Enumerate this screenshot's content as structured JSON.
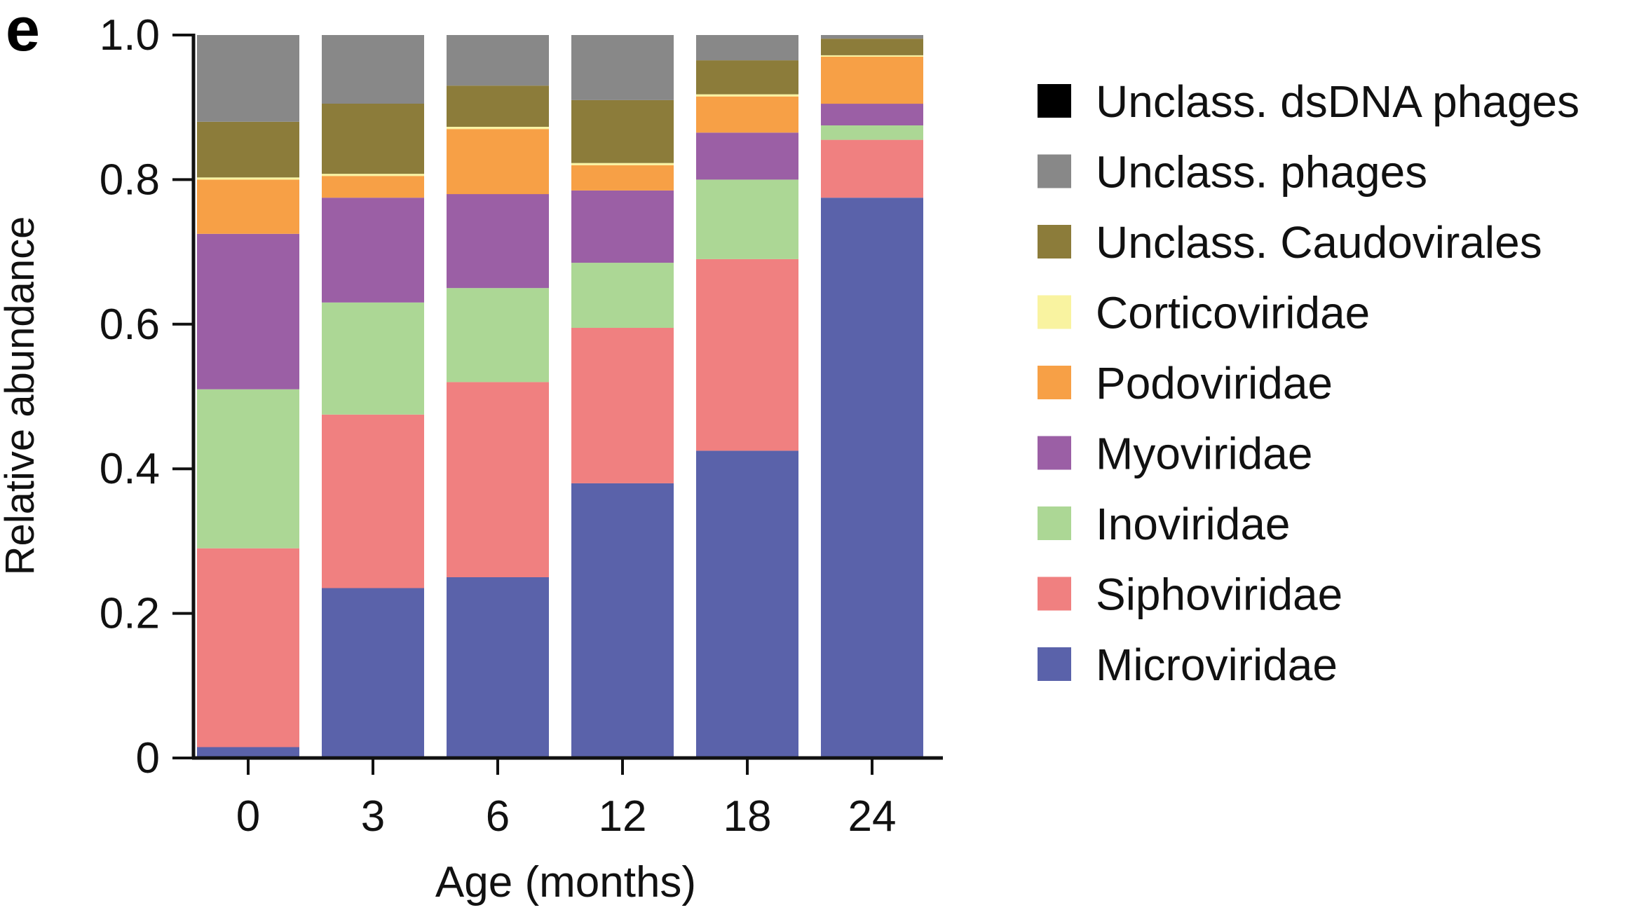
{
  "panel_label": "e",
  "chart_data": {
    "type": "bar",
    "stacked": true,
    "title": "",
    "xlabel": "Age (months)",
    "ylabel": "Relative abundance",
    "ylim": [
      0,
      1.0
    ],
    "yticks": [
      "0",
      "0.2",
      "0.4",
      "0.6",
      "0.8",
      "1.0"
    ],
    "ytick_values": [
      0,
      0.2,
      0.4,
      0.6,
      0.8,
      1.0
    ],
    "categories": [
      "0",
      "3",
      "6",
      "12",
      "18",
      "24"
    ],
    "legend_position": "right",
    "series": [
      {
        "name": "Microviridae",
        "color": "#5a62aa",
        "values": [
          0.015,
          0.235,
          0.25,
          0.38,
          0.425,
          0.775
        ]
      },
      {
        "name": "Siphoviridae",
        "color": "#f08080",
        "values": [
          0.275,
          0.24,
          0.27,
          0.215,
          0.265,
          0.08
        ]
      },
      {
        "name": "Inoviridae",
        "color": "#acd795",
        "values": [
          0.22,
          0.155,
          0.13,
          0.09,
          0.11,
          0.02
        ]
      },
      {
        "name": "Myoviridae",
        "color": "#9b5fa5",
        "values": [
          0.215,
          0.145,
          0.13,
          0.1,
          0.065,
          0.03
        ]
      },
      {
        "name": "Podoviridae",
        "color": "#f7a046",
        "values": [
          0.075,
          0.03,
          0.09,
          0.035,
          0.05,
          0.065
        ]
      },
      {
        "name": "Corticoviridae",
        "color": "#f9f3a0",
        "values": [
          0.003,
          0.003,
          0.003,
          0.003,
          0.003,
          0.002
        ]
      },
      {
        "name": "Unclass. Caudovirales",
        "color": "#8c7c3a",
        "values": [
          0.077,
          0.097,
          0.057,
          0.087,
          0.047,
          0.023
        ]
      },
      {
        "name": "Unclass. phages",
        "color": "#888888",
        "values": [
          0.12,
          0.095,
          0.07,
          0.09,
          0.035,
          0.005
        ]
      },
      {
        "name": "Unclass. dsDNA phages",
        "color": "#000000",
        "values": [
          0,
          0,
          0,
          0,
          0,
          0
        ]
      }
    ]
  }
}
